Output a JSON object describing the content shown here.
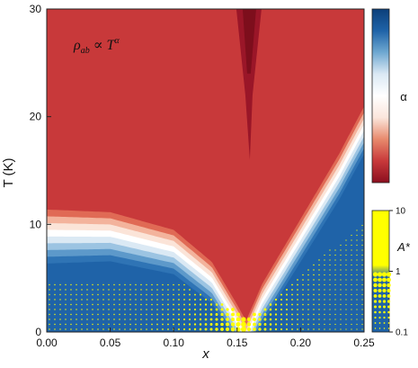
{
  "chart_data": {
    "type": "heatmap",
    "xlabel": "x",
    "ylabel": "T (K)",
    "xlim": [
      0,
      0.25
    ],
    "ylim": [
      0,
      30
    ],
    "x_ticks": [
      "0.00",
      "0.05",
      "0.10",
      "0.15",
      "0.20",
      "0.25"
    ],
    "x_tick_values": [
      0,
      0.05,
      0.1,
      0.15,
      0.2,
      0.25
    ],
    "y_ticks": [
      "0",
      "10",
      "20",
      "30"
    ],
    "y_tick_values": [
      0,
      10,
      20,
      30
    ],
    "annotation": {
      "rho": "ρ",
      "rho_sub": "ab",
      "proportional": " ∝ T",
      "exponent": "α"
    },
    "alpha_colorbar": {
      "title": "α",
      "min": 1.0,
      "max": 2.0,
      "colors": [
        "#8b0f1f",
        "#c8393a",
        "#e88a6d",
        "#fbe6dc",
        "#ffffff",
        "#dbe9f4",
        "#6fa8d1",
        "#1f63a8",
        "#0c3f7a"
      ]
    },
    "A_colorbar": {
      "title": "A*",
      "ticks": [
        "10",
        "1",
        "0.1"
      ],
      "tick_values": [
        10,
        1,
        0.1
      ],
      "scale": "log",
      "colors": [
        "#1f63a8",
        "#ffff00"
      ]
    },
    "critical_point": {
      "x": 0.157,
      "T": 0
    },
    "crossover_left": [
      [
        0.0,
        10.5
      ],
      [
        0.05,
        10.2
      ],
      [
        0.1,
        8.5
      ],
      [
        0.13,
        5.5
      ],
      [
        0.15,
        1.5
      ],
      [
        0.157,
        0
      ]
    ],
    "crossover_right": [
      [
        0.157,
        0
      ],
      [
        0.17,
        3.5
      ],
      [
        0.2,
        9.5
      ],
      [
        0.23,
        15.5
      ],
      [
        0.25,
        20
      ]
    ],
    "dark_region": {
      "x_center": 0.16,
      "T_min": 16,
      "T_max": 30
    },
    "colors": {
      "red": "#c8393a",
      "dark_red": "#7d0e1c",
      "blue": "#1f63a8",
      "yellow": "#ffff00"
    }
  }
}
